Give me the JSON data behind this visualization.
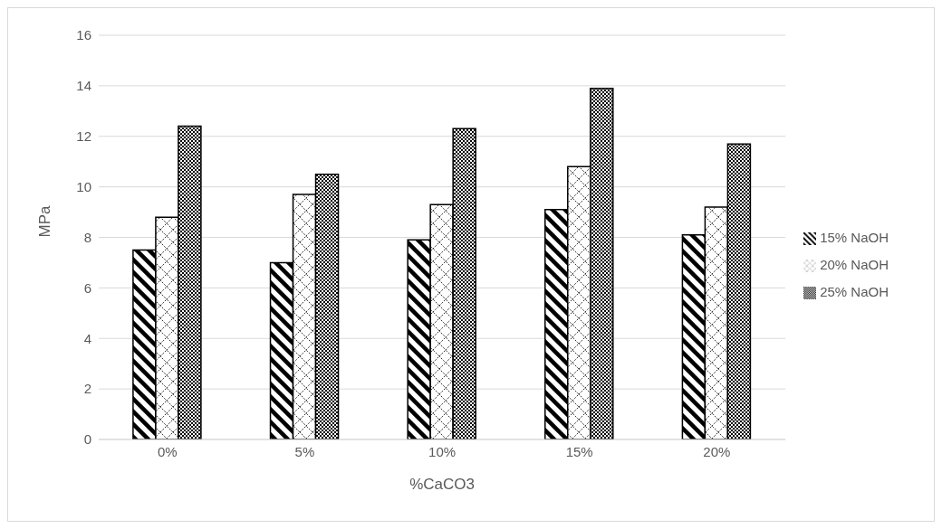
{
  "chart_data": {
    "type": "bar",
    "xlabel": "%CaCO3",
    "ylabel": "MPa",
    "categories": [
      "0%",
      "5%",
      "10%",
      "15%",
      "20%"
    ],
    "series": [
      {
        "name": "15% NaOH",
        "color": "#000000",
        "values": [
          7.5,
          7.0,
          7.9,
          9.1,
          8.1
        ]
      },
      {
        "name": "20% NaOH",
        "color": "#000000",
        "values": [
          8.8,
          9.7,
          9.3,
          10.8,
          9.2
        ]
      },
      {
        "name": "25% NaOH",
        "color": "#000000",
        "values": [
          12.4,
          10.5,
          12.3,
          13.9,
          11.7
        ]
      }
    ],
    "ylim": [
      0,
      16
    ],
    "yticks": [
      0,
      2,
      4,
      6,
      8,
      10,
      12,
      14,
      16
    ],
    "grid": "y",
    "legend": "right"
  }
}
